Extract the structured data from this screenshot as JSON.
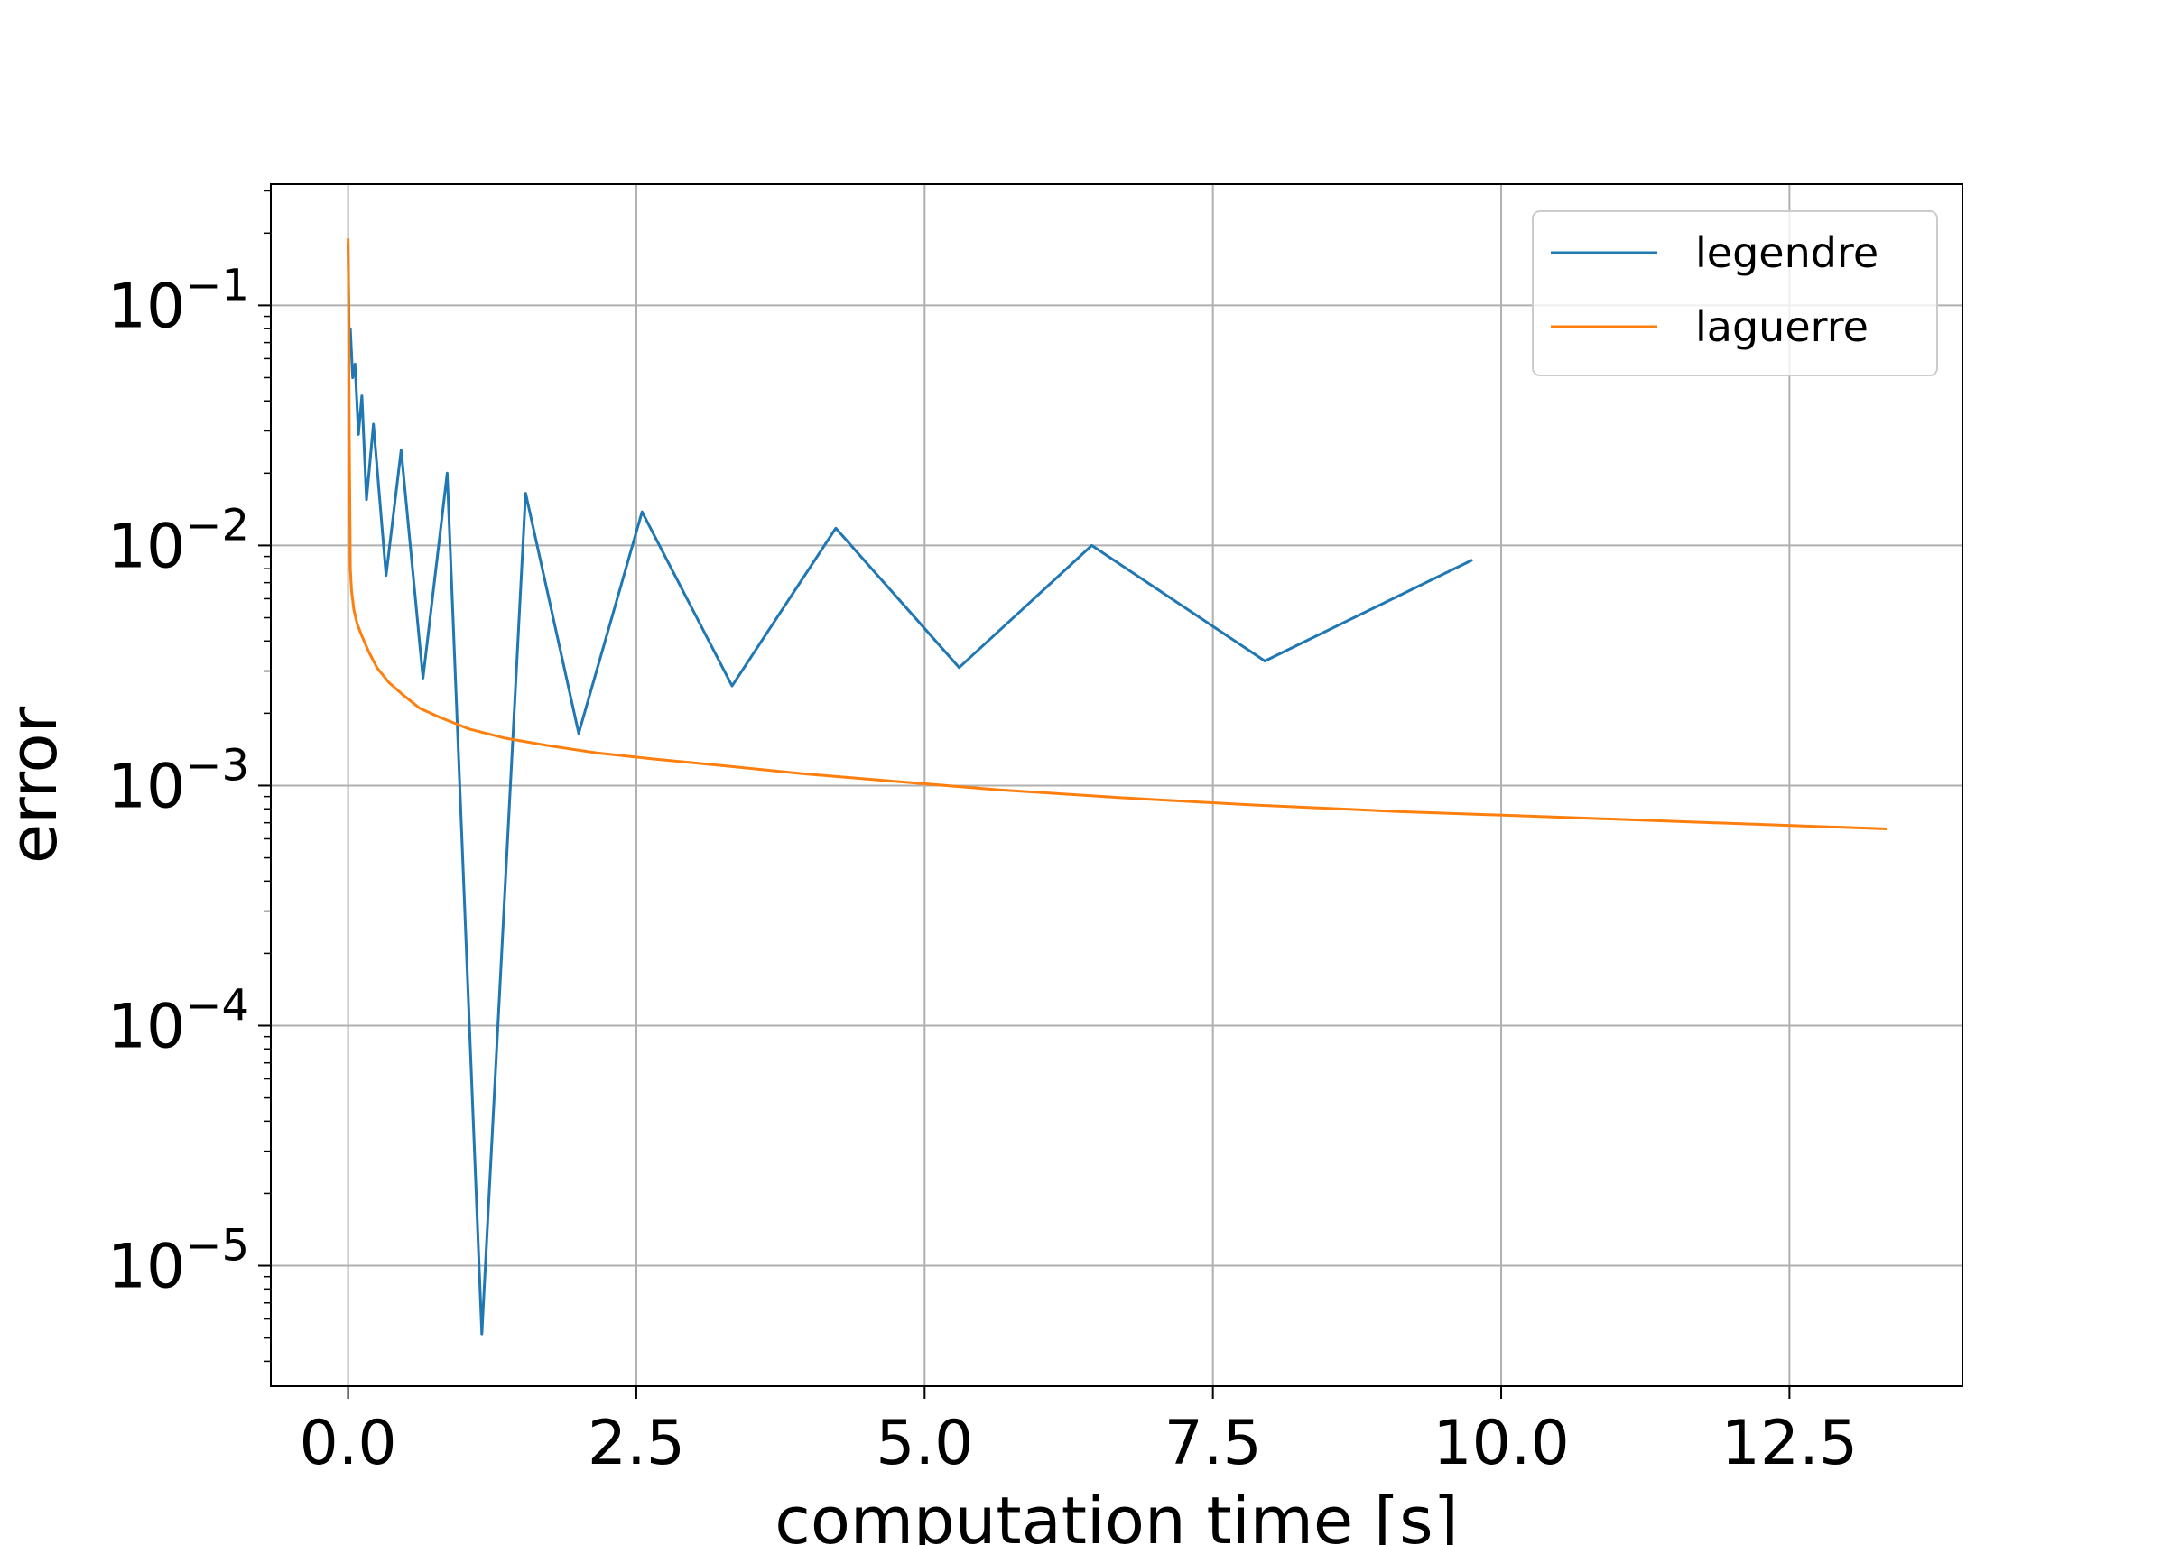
{
  "chart_data": {
    "type": "line",
    "xlabel": "computation time [s]",
    "ylabel": "error",
    "xscale": "linear",
    "yscale": "log",
    "xlim": [
      -0.67,
      14.0
    ],
    "ylim": [
      3.15e-06,
      0.32
    ],
    "grid": true,
    "legend_position": "top-right",
    "x_ticks": [
      {
        "value": 0.0,
        "label": "0.0"
      },
      {
        "value": 2.5,
        "label": "2.5"
      },
      {
        "value": 5.0,
        "label": "5.0"
      },
      {
        "value": 7.5,
        "label": "7.5"
      },
      {
        "value": 10.0,
        "label": "10.0"
      },
      {
        "value": 12.5,
        "label": "12.5"
      }
    ],
    "y_ticks": [
      {
        "value": 1e-05,
        "base": "10",
        "exp": "−5"
      },
      {
        "value": 0.0001,
        "base": "10",
        "exp": "−4"
      },
      {
        "value": 0.001,
        "base": "10",
        "exp": "−3"
      },
      {
        "value": 0.01,
        "base": "10",
        "exp": "−2"
      },
      {
        "value": 0.1,
        "base": "10",
        "exp": "−1"
      }
    ],
    "series": [
      {
        "name": "legendre",
        "color": "#1f77b4",
        "x": [
          0.0,
          0.01,
          0.02,
          0.04,
          0.06,
          0.09,
          0.12,
          0.16,
          0.22,
          0.33,
          0.46,
          0.65,
          0.86,
          1.16,
          1.54,
          2.0,
          2.55,
          3.33,
          4.23,
          5.3,
          6.45,
          7.95,
          9.75
        ],
        "y": [
          0.18,
          0.07,
          0.08,
          0.05,
          0.057,
          0.029,
          0.042,
          0.0155,
          0.032,
          0.0075,
          0.025,
          0.0028,
          0.02,
          5.2e-06,
          0.0165,
          0.00165,
          0.0138,
          0.0026,
          0.0118,
          0.0031,
          0.01,
          0.0033,
          0.0087
        ]
      },
      {
        "name": "laguerre",
        "color": "#ff7f0e",
        "x": [
          0.0,
          0.005,
          0.01,
          0.02,
          0.03,
          0.05,
          0.08,
          0.12,
          0.18,
          0.25,
          0.35,
          0.47,
          0.62,
          0.8,
          1.05,
          1.35,
          1.72,
          2.15,
          2.65,
          3.25,
          3.95,
          4.75,
          5.65,
          6.7,
          7.85,
          9.1,
          10.45,
          11.85,
          13.35
        ],
        "y": [
          0.19,
          0.1,
          0.03,
          0.008,
          0.0065,
          0.0054,
          0.0047,
          0.0042,
          0.0036,
          0.0031,
          0.0027,
          0.0024,
          0.0021,
          0.00192,
          0.00172,
          0.00158,
          0.00147,
          0.00137,
          0.00129,
          0.00121,
          0.00112,
          0.00104,
          0.00096,
          0.00089,
          0.00083,
          0.00078,
          0.00074,
          0.0007,
          0.00066
        ]
      }
    ]
  }
}
